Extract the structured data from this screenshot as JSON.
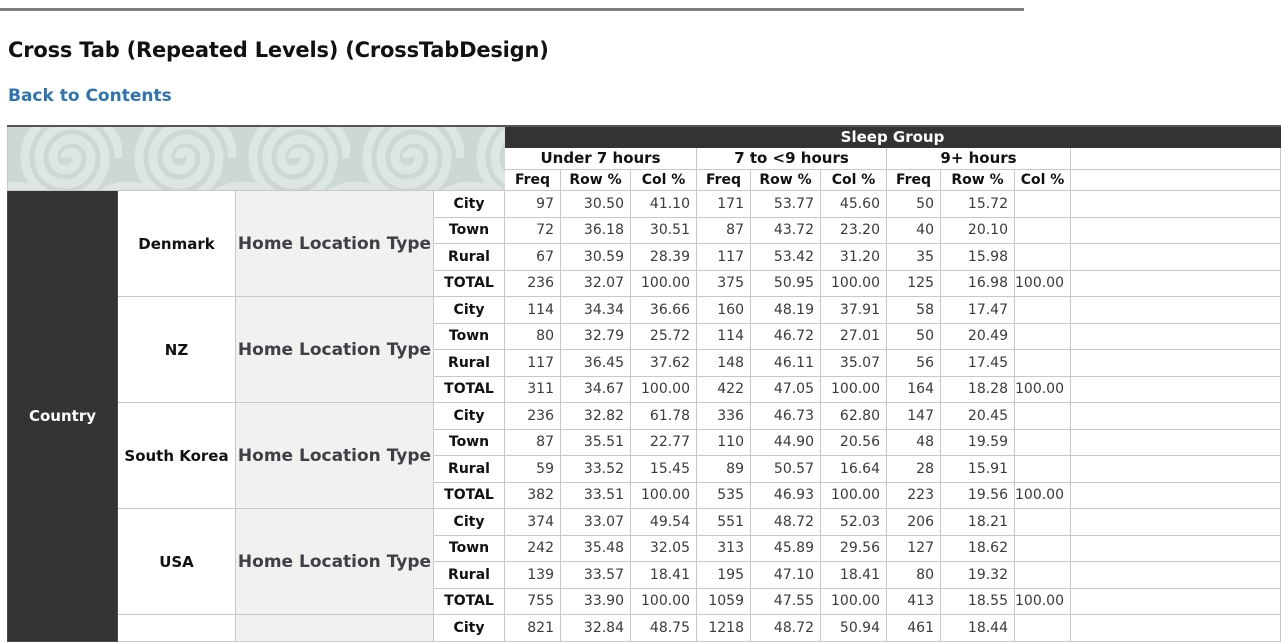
{
  "page": {
    "title": "Cross Tab (Repeated Levels) (CrossTabDesign)",
    "back_link": "Back to Contents"
  },
  "colors": {
    "header_dark": "#333333",
    "link_blue": "#2e74b5",
    "swirl_background": "#cdd8d3",
    "swirl_stroke": "#dde6e2",
    "dimension_cell_bg": "#f1f1f1",
    "page_rule_gray": "#7f7f7f"
  },
  "table": {
    "top_header": "Sleep Group",
    "row_axis_header": "Country",
    "group_headers": [
      "Under 7 hours",
      "7 to <9 hours",
      "9+ hours"
    ],
    "measures": [
      "Freq",
      "Row %",
      "Col %"
    ],
    "row_groups": [
      {
        "country": "Denmark",
        "dimension": "Home Location Type",
        "rows": [
          {
            "label": "City",
            "values": [
              "97",
              "30.50",
              "41.10",
              "171",
              "53.77",
              "45.60",
              "50",
              "15.72",
              ""
            ]
          },
          {
            "label": "Town",
            "values": [
              "72",
              "36.18",
              "30.51",
              "87",
              "43.72",
              "23.20",
              "40",
              "20.10",
              ""
            ]
          },
          {
            "label": "Rural",
            "values": [
              "67",
              "30.59",
              "28.39",
              "117",
              "53.42",
              "31.20",
              "35",
              "15.98",
              ""
            ]
          },
          {
            "label": "TOTAL",
            "values": [
              "236",
              "32.07",
              "100.00",
              "375",
              "50.95",
              "100.00",
              "125",
              "16.98",
              "100.00"
            ]
          }
        ]
      },
      {
        "country": "NZ",
        "dimension": "Home Location Type",
        "rows": [
          {
            "label": "City",
            "values": [
              "114",
              "34.34",
              "36.66",
              "160",
              "48.19",
              "37.91",
              "58",
              "17.47",
              ""
            ]
          },
          {
            "label": "Town",
            "values": [
              "80",
              "32.79",
              "25.72",
              "114",
              "46.72",
              "27.01",
              "50",
              "20.49",
              ""
            ]
          },
          {
            "label": "Rural",
            "values": [
              "117",
              "36.45",
              "37.62",
              "148",
              "46.11",
              "35.07",
              "56",
              "17.45",
              ""
            ]
          },
          {
            "label": "TOTAL",
            "values": [
              "311",
              "34.67",
              "100.00",
              "422",
              "47.05",
              "100.00",
              "164",
              "18.28",
              "100.00"
            ]
          }
        ]
      },
      {
        "country": "South Korea",
        "dimension": "Home Location Type",
        "rows": [
          {
            "label": "City",
            "values": [
              "236",
              "32.82",
              "61.78",
              "336",
              "46.73",
              "62.80",
              "147",
              "20.45",
              ""
            ]
          },
          {
            "label": "Town",
            "values": [
              "87",
              "35.51",
              "22.77",
              "110",
              "44.90",
              "20.56",
              "48",
              "19.59",
              ""
            ]
          },
          {
            "label": "Rural",
            "values": [
              "59",
              "33.52",
              "15.45",
              "89",
              "50.57",
              "16.64",
              "28",
              "15.91",
              ""
            ]
          },
          {
            "label": "TOTAL",
            "values": [
              "382",
              "33.51",
              "100.00",
              "535",
              "46.93",
              "100.00",
              "223",
              "19.56",
              "100.00"
            ]
          }
        ]
      },
      {
        "country": "USA",
        "dimension": "Home Location Type",
        "rows": [
          {
            "label": "City",
            "values": [
              "374",
              "33.07",
              "49.54",
              "551",
              "48.72",
              "52.03",
              "206",
              "18.21",
              ""
            ]
          },
          {
            "label": "Town",
            "values": [
              "242",
              "35.48",
              "32.05",
              "313",
              "45.89",
              "29.56",
              "127",
              "18.62",
              ""
            ]
          },
          {
            "label": "Rural",
            "values": [
              "139",
              "33.57",
              "18.41",
              "195",
              "47.10",
              "18.41",
              "80",
              "19.32",
              ""
            ]
          },
          {
            "label": "TOTAL",
            "values": [
              "755",
              "33.90",
              "100.00",
              "1059",
              "47.55",
              "100.00",
              "413",
              "18.55",
              "100.00"
            ]
          }
        ]
      },
      {
        "country": "",
        "dimension": "",
        "rows": [
          {
            "label": "City",
            "values": [
              "821",
              "32.84",
              "48.75",
              "1218",
              "48.72",
              "50.94",
              "461",
              "18.44",
              ""
            ]
          }
        ]
      }
    ]
  }
}
